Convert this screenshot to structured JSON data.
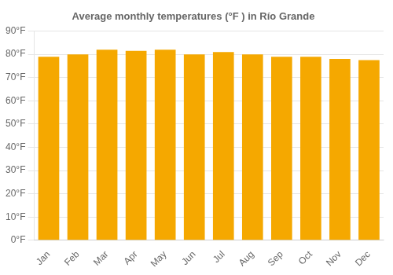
{
  "chart_data": {
    "type": "bar",
    "title": "Average monthly temperatures (°F ) in Río Grande",
    "categories": [
      "Jan",
      "Feb",
      "Mar",
      "Apr",
      "May",
      "Jun",
      "Jul",
      "Aug",
      "Sep",
      "Oct",
      "Nov",
      "Dec"
    ],
    "values": [
      79,
      80,
      82,
      81.5,
      82,
      80,
      81,
      80,
      79,
      79,
      78,
      77.5
    ],
    "color": "#F5A800",
    "ylim": [
      0,
      90
    ],
    "yticks": [
      {
        "value": 0,
        "label": "0°F"
      },
      {
        "value": 10,
        "label": "10°F"
      },
      {
        "value": 20,
        "label": "20°F"
      },
      {
        "value": 30,
        "label": "30°F"
      },
      {
        "value": 40,
        "label": "40°F"
      },
      {
        "value": 50,
        "label": "50°F"
      },
      {
        "value": 60,
        "label": "60°F"
      },
      {
        "value": 70,
        "label": "70°F"
      },
      {
        "value": 80,
        "label": "80°F"
      },
      {
        "value": 90,
        "label": "90°F"
      }
    ],
    "grid": true
  }
}
